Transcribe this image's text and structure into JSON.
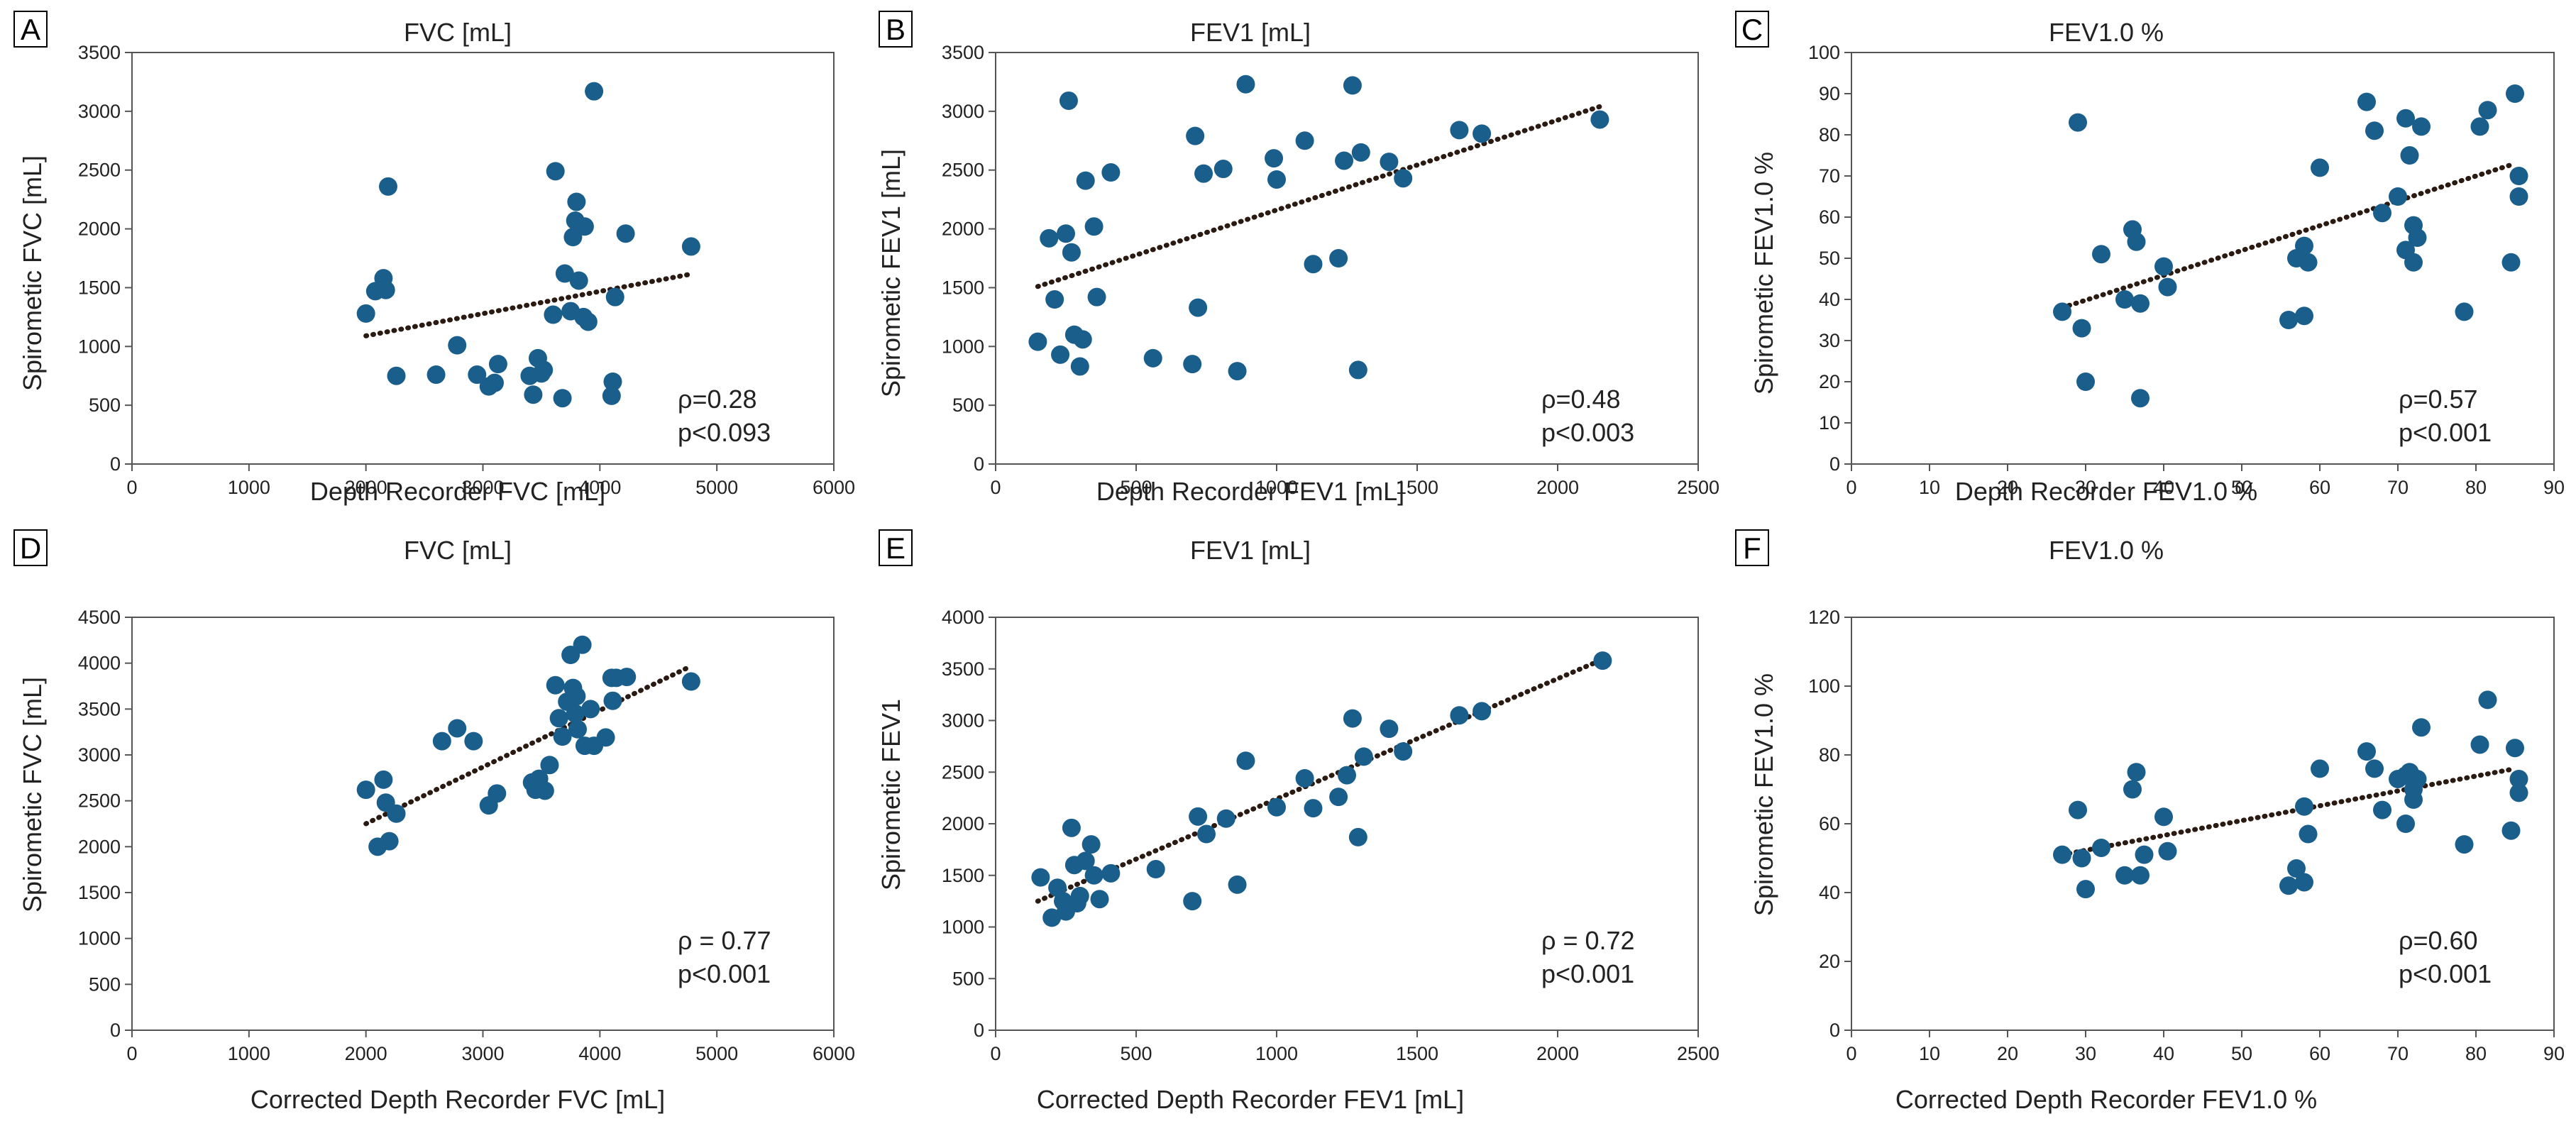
{
  "chart_data": [
    {
      "type": "scatter",
      "panel": "A",
      "title": "FVC [mL]",
      "xlabel": "Depth Recorder FVC [mL]",
      "ylabel": "Spirometic FVC [mL]",
      "xlim": [
        0,
        6000
      ],
      "ylim": [
        0,
        3500
      ],
      "xticks": [
        0,
        1000,
        2000,
        3000,
        4000,
        5000,
        6000
      ],
      "yticks": [
        0,
        500,
        1000,
        1500,
        2000,
        2500,
        3000,
        3500
      ],
      "stats": [
        "ρ=0.28",
        "p<0.093"
      ],
      "trend": [
        [
          2000,
          1090
        ],
        [
          4750,
          1610
        ]
      ],
      "x": [
        2000,
        2080,
        2150,
        2170,
        2190,
        2260,
        2600,
        2780,
        2950,
        3050,
        3100,
        3130,
        3400,
        3430,
        3470,
        3500,
        3520,
        3600,
        3620,
        3680,
        3700,
        3750,
        3770,
        3790,
        3800,
        3820,
        3860,
        3870,
        3900,
        3950,
        4100,
        4110,
        4130,
        4220,
        4780
      ],
      "y": [
        1280,
        1470,
        1580,
        1480,
        2360,
        750,
        760,
        1010,
        760,
        660,
        690,
        850,
        750,
        590,
        900,
        770,
        800,
        1270,
        2490,
        560,
        1620,
        1300,
        1930,
        2070,
        2230,
        1560,
        1250,
        2020,
        1210,
        3170,
        580,
        700,
        1420,
        1960,
        1850
      ]
    },
    {
      "type": "scatter",
      "panel": "B",
      "title": "FEV1 [mL]",
      "xlabel": "Depth Recorder FEV1 [mL]",
      "ylabel": "Spirometic FEV1 [mL]",
      "xlim": [
        0,
        2500
      ],
      "ylim": [
        0,
        3500
      ],
      "xticks": [
        0,
        500,
        1000,
        1500,
        2000,
        2500
      ],
      "yticks": [
        0,
        500,
        1000,
        1500,
        2000,
        2500,
        3000,
        3500
      ],
      "stats": [
        "ρ=0.48",
        "p<0.003"
      ],
      "trend": [
        [
          150,
          1510
        ],
        [
          2150,
          3040
        ]
      ],
      "x": [
        150,
        190,
        210,
        230,
        250,
        260,
        270,
        280,
        300,
        310,
        320,
        350,
        360,
        410,
        560,
        700,
        710,
        720,
        740,
        810,
        860,
        890,
        990,
        1000,
        1100,
        1130,
        1220,
        1240,
        1270,
        1290,
        1300,
        1400,
        1450,
        1650,
        1730,
        2150
      ],
      "y": [
        1040,
        1920,
        1400,
        930,
        1960,
        3090,
        1800,
        1100,
        830,
        1060,
        2410,
        2020,
        1420,
        2480,
        900,
        850,
        2790,
        1330,
        2470,
        2510,
        790,
        3230,
        2600,
        2420,
        2750,
        1700,
        1750,
        2580,
        3220,
        800,
        2650,
        2570,
        2430,
        2840,
        2810,
        2930
      ]
    },
    {
      "type": "scatter",
      "panel": "C",
      "title": "FEV1.0 %",
      "xlabel": "Depth Recorder FEV1.0 %",
      "ylabel": "Spirometic FEV1.0 %",
      "xlim": [
        0,
        90
      ],
      "ylim": [
        0,
        100
      ],
      "xticks": [
        0,
        10,
        20,
        30,
        40,
        50,
        60,
        70,
        80,
        90
      ],
      "yticks": [
        0,
        10,
        20,
        30,
        40,
        50,
        60,
        70,
        80,
        90,
        100
      ],
      "stats": [
        "ρ=0.57",
        "p<0.001"
      ],
      "trend": [
        [
          27,
          38
        ],
        [
          85,
          73
        ]
      ],
      "x": [
        27,
        29,
        29.5,
        30,
        32,
        35,
        36,
        36.5,
        37,
        37,
        40,
        40.5,
        56,
        57,
        58,
        58,
        58.5,
        60,
        66,
        67,
        68,
        70,
        71,
        71,
        71.5,
        72,
        72,
        72.5,
        73,
        78.5,
        80.5,
        81.5,
        84.5,
        85,
        85.5,
        85.5
      ],
      "y": [
        37,
        83,
        33,
        20,
        51,
        40,
        57,
        54,
        39,
        16,
        48,
        43,
        35,
        50,
        36,
        53,
        49,
        72,
        88,
        81,
        61,
        65,
        84,
        52,
        75,
        58,
        49,
        55,
        82,
        37,
        82,
        86,
        49,
        90,
        70,
        65
      ]
    },
    {
      "type": "scatter",
      "panel": "D",
      "title": "FVC [mL]",
      "xlabel": "Corrected Depth Recorder FVC [mL]",
      "ylabel": "Spirometic FVC [mL]",
      "xlim": [
        0,
        6000
      ],
      "ylim": [
        0,
        4500
      ],
      "xticks": [
        0,
        1000,
        2000,
        3000,
        4000,
        5000,
        6000
      ],
      "yticks": [
        0,
        500,
        1000,
        1500,
        2000,
        2500,
        3000,
        3500,
        4000,
        4500
      ],
      "stats": [
        "ρ = 0.77",
        "p<0.001"
      ],
      "trend": [
        [
          2000,
          2250
        ],
        [
          4750,
          3950
        ]
      ],
      "x": [
        2000,
        2100,
        2150,
        2170,
        2200,
        2260,
        2650,
        2780,
        2920,
        3050,
        3120,
        3420,
        3450,
        3480,
        3530,
        3570,
        3620,
        3650,
        3680,
        3720,
        3750,
        3770,
        3790,
        3800,
        3810,
        3850,
        3870,
        3920,
        3950,
        4050,
        4100,
        4110,
        4140,
        4230,
        4780
      ],
      "y": [
        2620,
        2000,
        2730,
        2480,
        2060,
        2360,
        3150,
        3290,
        3150,
        2450,
        2580,
        2700,
        2620,
        2740,
        2610,
        2890,
        3760,
        3400,
        3200,
        3580,
        4090,
        3730,
        3450,
        3640,
        3280,
        4200,
        3100,
        3500,
        3100,
        3190,
        3840,
        3590,
        3840,
        3850,
        3800
      ]
    },
    {
      "type": "scatter",
      "panel": "E",
      "title": "FEV1 [mL]",
      "xlabel": "Corrected Depth Recorder FEV1 [mL]",
      "ylabel": "Spirometic FEV1",
      "xlim": [
        0,
        2500
      ],
      "ylim": [
        0,
        4000
      ],
      "xticks": [
        0,
        500,
        1000,
        1500,
        2000,
        2500
      ],
      "yticks": [
        0,
        500,
        1000,
        1500,
        2000,
        2500,
        3000,
        3500,
        4000
      ],
      "stats": [
        "ρ = 0.72",
        "p<0.001"
      ],
      "trend": [
        [
          150,
          1250
        ],
        [
          2150,
          3580
        ]
      ],
      "x": [
        160,
        200,
        220,
        240,
        250,
        270,
        280,
        290,
        300,
        320,
        340,
        350,
        370,
        410,
        570,
        700,
        720,
        750,
        820,
        860,
        890,
        1000,
        1100,
        1130,
        1220,
        1250,
        1270,
        1290,
        1310,
        1400,
        1450,
        1650,
        1730,
        2160
      ],
      "y": [
        1480,
        1090,
        1380,
        1250,
        1150,
        1960,
        1600,
        1230,
        1300,
        1640,
        1800,
        1500,
        1270,
        1520,
        1560,
        1250,
        2070,
        1900,
        2050,
        1410,
        2610,
        2160,
        2440,
        2150,
        2260,
        2470,
        3020,
        1870,
        2650,
        2920,
        2700,
        3050,
        3090,
        3580
      ]
    },
    {
      "type": "scatter",
      "panel": "F",
      "title": "FEV1.0 %",
      "xlabel": "Corrected Depth Recorder FEV1.0 %",
      "ylabel": "Spirometic FEV1.0 %",
      "xlim": [
        0,
        90
      ],
      "ylim": [
        0,
        120
      ],
      "xticks": [
        0,
        10,
        20,
        30,
        40,
        50,
        60,
        70,
        80,
        90
      ],
      "yticks": [
        0,
        20,
        40,
        60,
        80,
        100,
        120
      ],
      "stats": [
        "ρ=0.60",
        "p<0.001"
      ],
      "trend": [
        [
          27,
          51
        ],
        [
          85,
          76
        ]
      ],
      "x": [
        27,
        29,
        29.5,
        30,
        32,
        35,
        36,
        36.5,
        37,
        37.5,
        40,
        40.5,
        56,
        57,
        58,
        58,
        58.5,
        60,
        66,
        67,
        68,
        70,
        71,
        71,
        71.5,
        72,
        72,
        72.5,
        73,
        78.5,
        80.5,
        81.5,
        84.5,
        85,
        85.5,
        85.5
      ],
      "y": [
        51,
        64,
        50,
        41,
        53,
        45,
        70,
        75,
        45,
        51,
        62,
        52,
        42,
        47,
        43,
        65,
        57,
        76,
        81,
        76,
        64,
        73,
        60,
        74,
        75,
        67,
        70,
        73,
        88,
        54,
        83,
        96,
        58,
        82,
        73,
        69
      ]
    }
  ]
}
